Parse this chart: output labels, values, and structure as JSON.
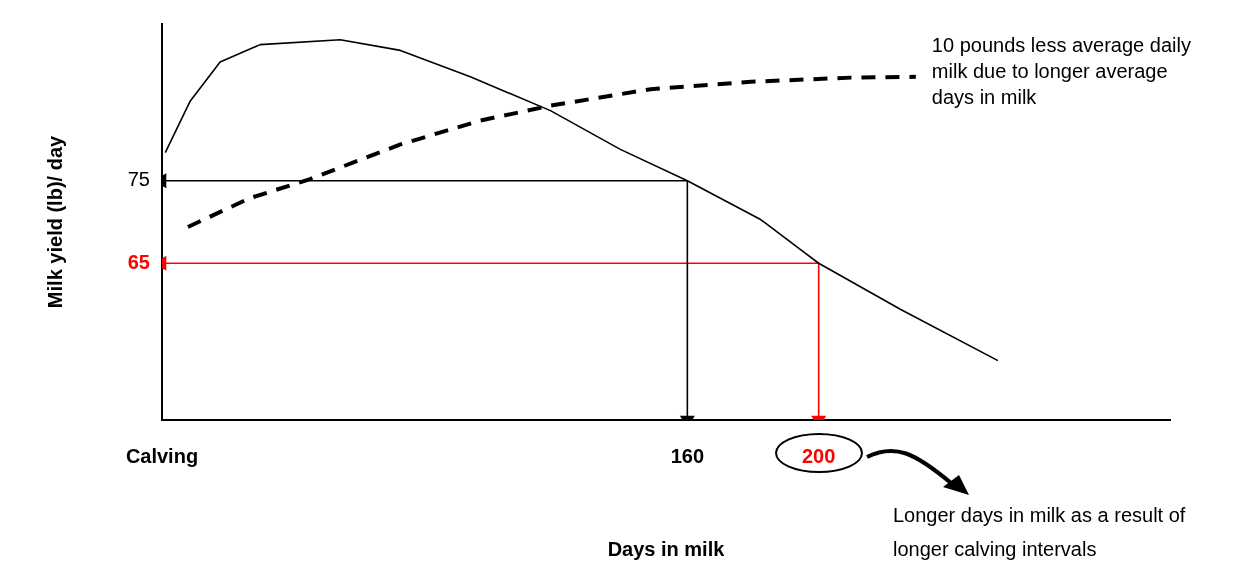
{
  "chart_data": {
    "type": "line",
    "xlabel": "Days in milk",
    "ylabel": "Milk yield (lb)/ day",
    "xlim": [
      0,
      307
    ],
    "ylim": [
      46,
      94
    ],
    "xticks": [
      {
        "value": 0,
        "label": "Calving"
      },
      160,
      200
    ],
    "yticks": [
      65,
      75
    ],
    "grid": false,
    "legend": false,
    "series": [
      {
        "color": "#000000",
        "x": [
          1,
          8.5,
          17.7,
          29.9,
          54.3,
          72.6,
          93.9,
          118.3,
          139.6,
          160,
          182.3,
          200,
          225,
          254.6
        ],
        "values": [
          78.4,
          84.6,
          89.4,
          91.5,
          92.1,
          90.8,
          87.6,
          83.5,
          78.8,
          75,
          70.3,
          65,
          59.4,
          53.2
        ],
        "line_style": "solid"
      },
      {
        "color": "#000000",
        "x": [
          7.9,
          26.8,
          45.1,
          72.6,
          97,
          118.3,
          148.8,
          179.3,
          209.8,
          229.6
        ],
        "values": [
          69.4,
          72.9,
          75.2,
          79.4,
          82.3,
          84.1,
          86.1,
          87,
          87.5,
          87.6
        ],
        "line_style": "dashed"
      },
      {
        "color": "#000000",
        "x": [
          160,
          0
        ],
        "values": [
          75,
          75
        ],
        "marker": "triangle"
      },
      {
        "color": "#000000",
        "x": [
          160,
          160
        ],
        "values": [
          75,
          46
        ],
        "marker": "triangle"
      },
      {
        "color": "#ff0000",
        "x": [
          200,
          0
        ],
        "values": [
          65,
          65
        ],
        "marker": "triangle"
      },
      {
        "color": "#ff0000",
        "x": [
          200,
          200
        ],
        "values": [
          65,
          46
        ],
        "marker": "triangle"
      }
    ],
    "annotations": [
      {
        "text": "10 pounds less average daily milk due to longer average days in milk",
        "x": 229.6,
        "y": 87.6
      },
      "Longer days in milk as a result of longer calving intervals"
    ]
  }
}
